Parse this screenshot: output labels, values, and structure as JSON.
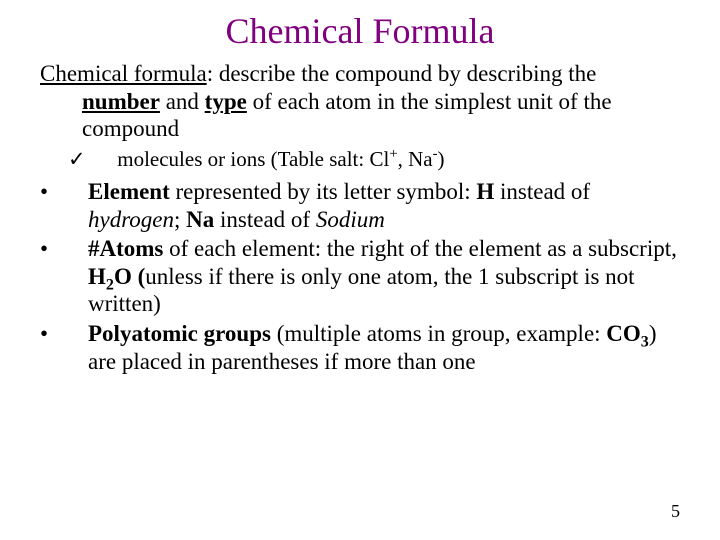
{
  "title": "Chemical Formula",
  "definition": {
    "lead": "Chemical formula",
    "rest_a": ": describe the compound by describing the ",
    "number": "number",
    "and": " and ",
    "type": "type",
    "rest_b": " of each atom in the simplest unit of the compound"
  },
  "sub": {
    "check": "✓",
    "text_a": " molecules or ions (Table salt: Cl",
    "sup1": "+",
    "comma": ", Na",
    "sup2": "-",
    "close": ")"
  },
  "bullets": [
    {
      "dot": "•",
      "parts": [
        {
          "t": "Element",
          "b": true
        },
        {
          "t": " represented by its letter symbol: "
        },
        {
          "t": "H",
          "b": true
        },
        {
          "t": " instead of "
        },
        {
          "t": "hydrogen",
          "i": true
        },
        {
          "t": "; "
        },
        {
          "t": "Na",
          "b": true
        },
        {
          "t": " instead of "
        },
        {
          "t": "Sodium",
          "i": true
        }
      ]
    },
    {
      "dot": "•",
      "parts": [
        {
          "t": "#Atoms",
          "b": true
        },
        {
          "t": " of each element: the right of the element as a subscript, "
        },
        {
          "t": "H",
          "b": true
        },
        {
          "t": "2",
          "b": true,
          "sub": true
        },
        {
          "t": "O (",
          "b": true
        },
        {
          "t": "unless if there is only one atom, the 1 subscript is not written)"
        }
      ]
    },
    {
      "dot": "•",
      "parts": [
        {
          "t": "Polyatomic groups",
          "b": true
        },
        {
          "t": " (multiple atoms in group, example: "
        },
        {
          "t": "CO",
          "b": true
        },
        {
          "t": "3",
          "b": true,
          "sub": true
        },
        {
          "t": ") are placed in parentheses if more than one"
        }
      ]
    }
  ],
  "page_number": "5",
  "colors": {
    "title": "#800080",
    "text": "#000000",
    "background": "#ffffff"
  },
  "fonts": {
    "family": "Times New Roman",
    "title_size_pt": 28,
    "body_size_pt": 18,
    "sub_size_pt": 16
  }
}
